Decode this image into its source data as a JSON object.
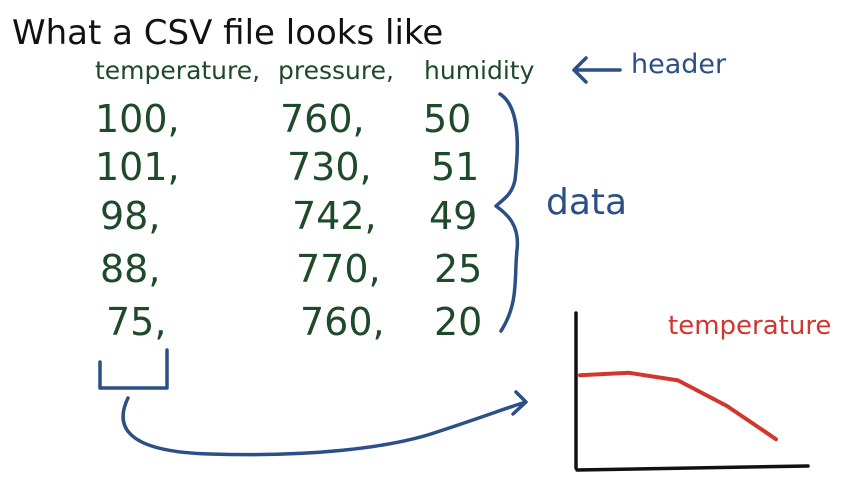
{
  "title": "What a CSV file looks like",
  "header_label": "header",
  "data_label": "data",
  "csv": {
    "headers": [
      "temperature,",
      "pressure,",
      "humidity"
    ],
    "rows": [
      [
        "100,",
        "760,",
        "50"
      ],
      [
        "101,",
        "730,",
        "51"
      ],
      [
        "98,",
        "742,",
        "49"
      ],
      [
        "88,",
        "770,",
        "25"
      ],
      [
        "75,",
        "760,",
        "20"
      ]
    ]
  },
  "chart_label": "temperature",
  "colors": {
    "title": "#111111",
    "csv_text": "#1f4a2a",
    "annotation": "#2b4f86",
    "chart_line": "#d2362f",
    "axis": "#111111"
  },
  "chart_data": {
    "type": "line",
    "title": "temperature",
    "xlabel": "",
    "ylabel": "",
    "series": [
      {
        "name": "temperature",
        "values": [
          100,
          101,
          98,
          88,
          75
        ]
      }
    ],
    "legend": "none",
    "grid": false
  }
}
